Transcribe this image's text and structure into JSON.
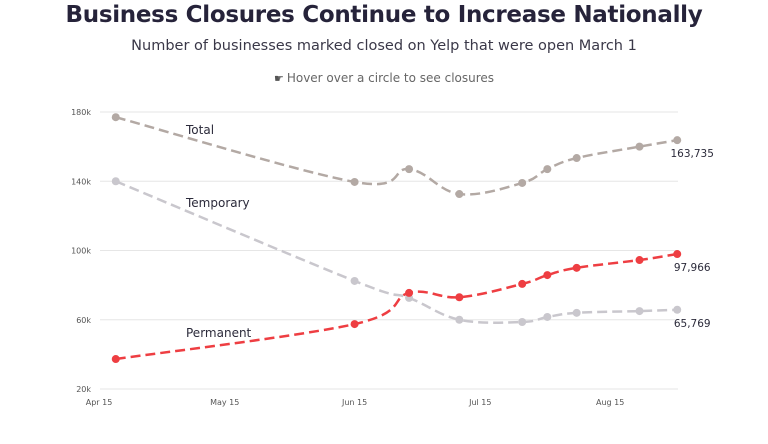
{
  "title": "Business Closures Continue to Increase Nationally",
  "subtitle": "Number of businesses marked closed on Yelp that were open March 1",
  "hint": {
    "icon": "pointing-hand-icon",
    "text": "Hover over a circle to see closures"
  },
  "chart_data": {
    "type": "line",
    "title": "Business Closures Continue to Increase Nationally",
    "subtitle": "Number of businesses marked closed on Yelp that were open March 1",
    "xlabel": "",
    "ylabel": "",
    "x": [
      "2020-04-19",
      "2020-06-15",
      "2020-06-28",
      "2020-07-10",
      "2020-07-25",
      "2020-07-31",
      "2020-08-07",
      "2020-08-22",
      "2020-08-31"
    ],
    "x_ticks": [
      "Apr 15",
      "May 15",
      "Jun 15",
      "Jul 15",
      "Aug 15"
    ],
    "y_ticks": [
      "20k",
      "60k",
      "100k",
      "140k",
      "180k"
    ],
    "ylim": [
      20000,
      180000
    ],
    "grid": true,
    "legend": "inline labels",
    "series": [
      {
        "name": "Total",
        "color": "#b3a9a4",
        "values": [
          177000,
          139600,
          147000,
          132600,
          139000,
          147000,
          153400,
          160000,
          163735
        ],
        "end_label": "163,735"
      },
      {
        "name": "Temporary",
        "color": "#c9c7cd",
        "values": [
          140000,
          82400,
          72600,
          60000,
          58700,
          61600,
          64000,
          65000,
          65769
        ],
        "end_label": "65,769"
      },
      {
        "name": "Permanent",
        "color": "#ee3e42",
        "values": [
          37300,
          57500,
          75500,
          73000,
          80700,
          85800,
          90000,
          94500,
          97966
        ],
        "end_label": "97,966"
      }
    ]
  }
}
